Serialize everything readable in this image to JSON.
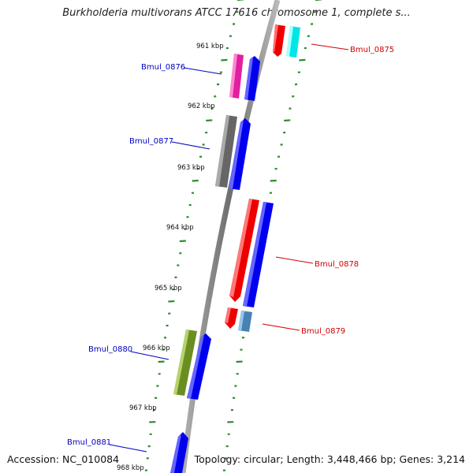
{
  "title": "Burkholderia multivorans ATCC 17616 chromosome 1, complete s...",
  "accession": "Accession: NC_010084",
  "topology": "Topology: circular; Length: 3,448,466 bp; Genes: 3,214",
  "scale_labels": [
    "961 kbp",
    "962 kbp",
    "963 kbp",
    "964 kbp",
    "965 kbp",
    "966 kbp",
    "967 kbp",
    "968 kbp"
  ],
  "genes": [
    {
      "id": "Bmul_0875",
      "color": "#d00000"
    },
    {
      "id": "Bmul_0876",
      "color": "#0000c0"
    },
    {
      "id": "Bmul_0877",
      "color": "#0000c0"
    },
    {
      "id": "Bmul_0878",
      "color": "#d00000"
    },
    {
      "id": "Bmul_0879",
      "color": "#d00000"
    },
    {
      "id": "Bmul_0880",
      "color": "#0000c0"
    },
    {
      "id": "Bmul_0881",
      "color": "#0000c0"
    }
  ],
  "colors": {
    "backbone": "#8a8a8a",
    "tick": "#2e8b2e",
    "cog_blue": "#0000ee",
    "red": "#ff0000",
    "cyan": "#00e5e5",
    "magenta": "#e020a0",
    "gray": "#666666",
    "olive": "#6b8e23",
    "steelblue": "#4682b4"
  }
}
